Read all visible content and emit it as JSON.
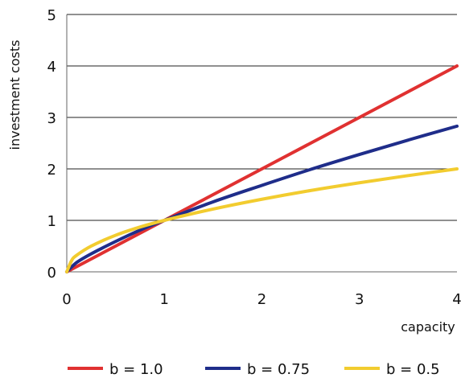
{
  "chart_data": {
    "type": "line",
    "title": "",
    "xlabel": "capacity",
    "ylabel": "investment costs",
    "xlim": [
      0,
      4
    ],
    "ylim": [
      0,
      5
    ],
    "x_ticks": [
      "0",
      "1",
      "2",
      "3",
      "4"
    ],
    "y_ticks": [
      "0",
      "1",
      "2",
      "3",
      "4",
      "5"
    ],
    "grid": "horizontal",
    "legend_position": "bottom",
    "series": [
      {
        "name": "b = 1.0",
        "color": "#e03131",
        "x": [
          0,
          0.5,
          1,
          1.5,
          2,
          2.5,
          3,
          3.5,
          4
        ],
        "y": [
          0,
          0.5,
          1,
          1.5,
          2,
          2.5,
          3,
          3.5,
          4
        ]
      },
      {
        "name": "b = 0.75",
        "color": "#1f2d8a",
        "x": [
          0,
          0.1,
          0.25,
          0.5,
          0.75,
          1,
          1.5,
          2,
          2.5,
          3,
          3.5,
          4
        ],
        "y": [
          0,
          0.18,
          0.35,
          0.59,
          0.81,
          1.0,
          1.36,
          1.68,
          1.99,
          2.28,
          2.56,
          2.83
        ]
      },
      {
        "name": "b = 0.5",
        "color": "#f2cc2f",
        "x": [
          0,
          0.05,
          0.1,
          0.25,
          0.5,
          0.75,
          1,
          1.5,
          2,
          2.5,
          3,
          3.5,
          4
        ],
        "y": [
          0,
          0.22,
          0.32,
          0.5,
          0.71,
          0.87,
          1.0,
          1.22,
          1.41,
          1.58,
          1.73,
          1.87,
          2.0
        ]
      }
    ]
  }
}
